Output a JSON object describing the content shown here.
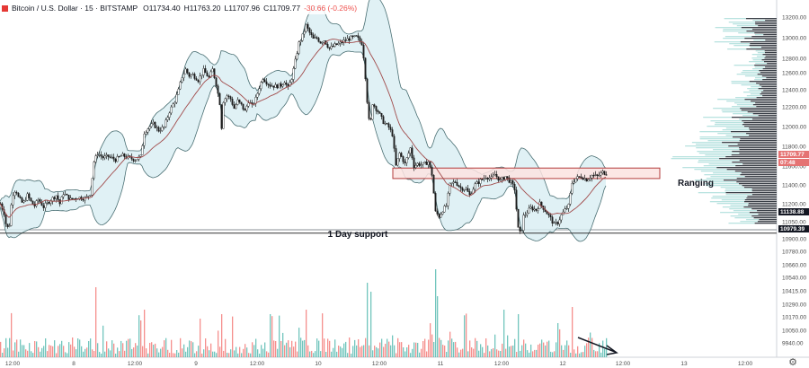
{
  "header": {
    "symbol": "Bitcoin / U.S. Dollar · 15 · BITSTAMP",
    "open": "O11734.40",
    "high": "H11763.20",
    "low": "L11707.96",
    "close": "C11709.77",
    "change": "-30.66 (-0.26%)"
  },
  "colors": {
    "up": "#26a69a",
    "down": "#ef5350",
    "band_fill": "#d8eef2",
    "band_line": "#4a6f73",
    "ma": "#a14b4b",
    "volume_profile": "#3a3f47",
    "volume_profile_alt": "#b9e3e0",
    "zone_fill": "#fbe3e1",
    "zone_border": "#b33b3b"
  },
  "chart_data": {
    "type": "candlestick",
    "y_axis_labels": [
      "13200.00",
      "13000.00",
      "12800.00",
      "12600.00",
      "12400.00",
      "12200.00",
      "12000.00",
      "11800.00",
      "11600.00",
      "11400.00",
      "11200.00",
      "11050.00",
      "10900.00",
      "10780.00",
      "10660.00",
      "10540.00",
      "10415.00",
      "10290.00",
      "10170.00",
      "10050.00",
      "9940.00"
    ],
    "x_axis_labels": [
      "12:00",
      "8",
      "12:00",
      "9",
      "12:00",
      "10",
      "12:00",
      "11",
      "12:00",
      "12",
      "12:00",
      "13",
      "12:00"
    ],
    "ylim": [
      10900,
      13300
    ],
    "price_series": [
      [
        0,
        11420
      ],
      [
        4,
        11330
      ],
      [
        7,
        11180
      ],
      [
        10,
        11220
      ],
      [
        13,
        11500
      ],
      [
        17,
        11560
      ],
      [
        20,
        11480
      ],
      [
        25,
        11420
      ],
      [
        30,
        11500
      ],
      [
        34,
        11440
      ],
      [
        38,
        11400
      ],
      [
        42,
        11460
      ],
      [
        48,
        11390
      ],
      [
        55,
        11450
      ],
      [
        62,
        11500
      ],
      [
        66,
        11420
      ],
      [
        70,
        11520
      ],
      [
        78,
        11460
      ],
      [
        86,
        11480
      ],
      [
        95,
        11470
      ],
      [
        100,
        11520
      ],
      [
        104,
        11820
      ],
      [
        108,
        11900
      ],
      [
        114,
        11860
      ],
      [
        120,
        11870
      ],
      [
        128,
        11840
      ],
      [
        135,
        11880
      ],
      [
        142,
        11860
      ],
      [
        150,
        11840
      ],
      [
        156,
        11870
      ],
      [
        160,
        12100
      ],
      [
        165,
        12150
      ],
      [
        170,
        12180
      ],
      [
        176,
        12120
      ],
      [
        182,
        12150
      ],
      [
        188,
        12300
      ],
      [
        194,
        12400
      ],
      [
        198,
        12500
      ],
      [
        202,
        12630
      ],
      [
        206,
        12700
      ],
      [
        210,
        12640
      ],
      [
        214,
        12650
      ],
      [
        220,
        12600
      ],
      [
        226,
        12690
      ],
      [
        232,
        12620
      ],
      [
        236,
        12700
      ],
      [
        240,
        12560
      ],
      [
        244,
        12380
      ],
      [
        246,
        12150
      ],
      [
        248,
        12400
      ],
      [
        252,
        12450
      ],
      [
        256,
        12420
      ],
      [
        260,
        12330
      ],
      [
        264,
        12400
      ],
      [
        268,
        12360
      ],
      [
        272,
        12300
      ],
      [
        276,
        12400
      ],
      [
        280,
        12350
      ],
      [
        284,
        12420
      ],
      [
        288,
        12530
      ],
      [
        292,
        12620
      ],
      [
        296,
        12580
      ],
      [
        300,
        12550
      ],
      [
        306,
        12540
      ],
      [
        312,
        12550
      ],
      [
        316,
        12590
      ],
      [
        320,
        12520
      ],
      [
        324,
        12620
      ],
      [
        328,
        12780
      ],
      [
        332,
        12950
      ],
      [
        336,
        13020
      ],
      [
        340,
        13120
      ],
      [
        344,
        13050
      ],
      [
        348,
        12990
      ],
      [
        352,
        13000
      ],
      [
        356,
        12960
      ],
      [
        360,
        12980
      ],
      [
        366,
        12900
      ],
      [
        372,
        12930
      ],
      [
        378,
        12950
      ],
      [
        384,
        12980
      ],
      [
        390,
        13000
      ],
      [
        396,
        13010
      ],
      [
        402,
        12950
      ],
      [
        405,
        12760
      ],
      [
        407,
        12500
      ],
      [
        409,
        12300
      ],
      [
        411,
        12130
      ],
      [
        414,
        12380
      ],
      [
        420,
        12300
      ],
      [
        426,
        12200
      ],
      [
        432,
        12150
      ],
      [
        436,
        12080
      ],
      [
        440,
        11780
      ],
      [
        444,
        11900
      ],
      [
        450,
        11800
      ],
      [
        456,
        11950
      ],
      [
        460,
        11780
      ],
      [
        464,
        11800
      ],
      [
        470,
        11790
      ],
      [
        476,
        11820
      ],
      [
        480,
        11700
      ],
      [
        484,
        11340
      ],
      [
        488,
        11300
      ],
      [
        492,
        11360
      ],
      [
        496,
        11400
      ],
      [
        500,
        11600
      ],
      [
        506,
        11630
      ],
      [
        512,
        11570
      ],
      [
        518,
        11560
      ],
      [
        522,
        11500
      ],
      [
        528,
        11600
      ],
      [
        534,
        11640
      ],
      [
        540,
        11680
      ],
      [
        546,
        11660
      ],
      [
        550,
        11700
      ],
      [
        556,
        11640
      ],
      [
        562,
        11680
      ],
      [
        568,
        11620
      ],
      [
        572,
        11560
      ],
      [
        576,
        11180
      ],
      [
        579,
        11120
      ],
      [
        582,
        11300
      ],
      [
        586,
        11340
      ],
      [
        590,
        11380
      ],
      [
        596,
        11360
      ],
      [
        600,
        11420
      ],
      [
        604,
        11380
      ],
      [
        608,
        11330
      ],
      [
        612,
        11280
      ],
      [
        616,
        11220
      ],
      [
        620,
        11240
      ],
      [
        624,
        11310
      ],
      [
        628,
        11360
      ],
      [
        632,
        11400
      ],
      [
        636,
        11620
      ],
      [
        640,
        11660
      ],
      [
        646,
        11680
      ],
      [
        652,
        11650
      ],
      [
        658,
        11690
      ],
      [
        664,
        11680
      ],
      [
        670,
        11720
      ],
      [
        674,
        11710
      ]
    ],
    "support_price": 11138.88,
    "current_price": 11709.77,
    "resistance_zone": [
      11660,
      11760
    ],
    "price_badges": [
      "11709.77",
      "07:48",
      "11138.88",
      "10979.39"
    ],
    "annotations": [
      "1 Day support",
      "Ranging"
    ]
  }
}
